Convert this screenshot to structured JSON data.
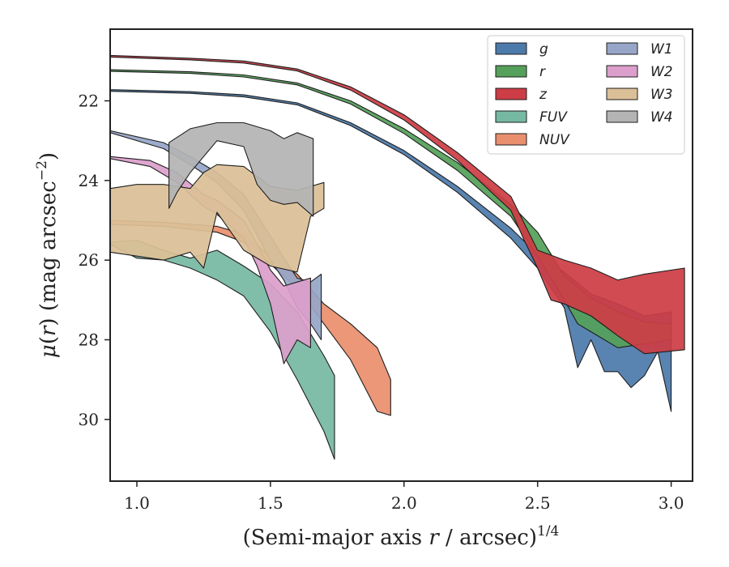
{
  "chart_data": {
    "type": "area",
    "title": "",
    "xlabel": "(Semi-major axis r / arcsec)",
    "xlabel_parts": {
      "prefix": "(Semi-major axis ",
      "var": "r",
      "suffix": " / arcsec)",
      "exponent": "1/4"
    },
    "ylabel_parts": {
      "mu": "μ",
      "open": "(",
      "var": "r",
      "close": ") (mag arcsec",
      "exponent": "−2",
      "end": ")"
    },
    "xlim": [
      0.9,
      3.08
    ],
    "ylim": [
      31.55,
      20.2
    ],
    "y_inverted": true,
    "xticks": [
      1.0,
      1.5,
      2.0,
      2.5,
      3.0
    ],
    "xtick_labels": [
      "1.0",
      "1.5",
      "2.0",
      "2.5",
      "3.0"
    ],
    "yticks": [
      22,
      24,
      26,
      28,
      30
    ],
    "ytick_labels": [
      "22",
      "24",
      "26",
      "28",
      "30"
    ],
    "grid": false,
    "legend_position": "top-right",
    "series": [
      {
        "name": "g",
        "color": "#4c7bab",
        "upper": [
          [
            0.9,
            21.72
          ],
          [
            1.2,
            21.77
          ],
          [
            1.4,
            21.85
          ],
          [
            1.6,
            22.05
          ],
          [
            1.8,
            22.55
          ],
          [
            2.0,
            23.25
          ],
          [
            2.2,
            24.15
          ],
          [
            2.4,
            25.2
          ],
          [
            2.5,
            25.85
          ],
          [
            2.6,
            26.3
          ],
          [
            2.7,
            26.85
          ],
          [
            2.8,
            27.1
          ],
          [
            2.9,
            27.4
          ],
          [
            3.0,
            27.3
          ]
        ],
        "lower": [
          [
            0.9,
            21.76
          ],
          [
            1.2,
            21.81
          ],
          [
            1.4,
            21.9
          ],
          [
            1.6,
            22.1
          ],
          [
            1.8,
            22.62
          ],
          [
            2.0,
            23.35
          ],
          [
            2.2,
            24.3
          ],
          [
            2.4,
            25.45
          ],
          [
            2.5,
            26.2
          ],
          [
            2.6,
            27.2
          ],
          [
            2.65,
            28.7
          ],
          [
            2.7,
            28.0
          ],
          [
            2.75,
            28.8
          ],
          [
            2.8,
            28.8
          ],
          [
            2.85,
            29.2
          ],
          [
            2.9,
            28.9
          ],
          [
            2.95,
            28.3
          ],
          [
            3.0,
            29.8
          ]
        ]
      },
      {
        "name": "r",
        "color": "#55a05a",
        "upper": [
          [
            0.9,
            21.22
          ],
          [
            1.2,
            21.27
          ],
          [
            1.4,
            21.35
          ],
          [
            1.6,
            21.55
          ],
          [
            1.8,
            22.0
          ],
          [
            2.0,
            22.7
          ],
          [
            2.2,
            23.55
          ],
          [
            2.4,
            24.6
          ],
          [
            2.5,
            25.3
          ],
          [
            2.6,
            26.4
          ],
          [
            2.7,
            26.95
          ],
          [
            2.8,
            27.3
          ],
          [
            2.9,
            27.55
          ],
          [
            3.0,
            27.6
          ]
        ],
        "lower": [
          [
            0.9,
            21.26
          ],
          [
            1.2,
            21.31
          ],
          [
            1.4,
            21.4
          ],
          [
            1.6,
            21.6
          ],
          [
            1.8,
            22.08
          ],
          [
            2.0,
            22.82
          ],
          [
            2.2,
            23.75
          ],
          [
            2.4,
            24.9
          ],
          [
            2.5,
            25.9
          ],
          [
            2.6,
            27.0
          ],
          [
            2.65,
            27.6
          ],
          [
            2.7,
            27.8
          ],
          [
            2.8,
            28.2
          ],
          [
            2.9,
            28.1
          ],
          [
            3.0,
            28.0
          ]
        ]
      },
      {
        "name": "z",
        "color": "#cc3d45",
        "upper": [
          [
            0.9,
            20.86
          ],
          [
            1.2,
            20.93
          ],
          [
            1.4,
            21.0
          ],
          [
            1.6,
            21.2
          ],
          [
            1.8,
            21.65
          ],
          [
            2.0,
            22.35
          ],
          [
            2.2,
            23.3
          ],
          [
            2.4,
            24.4
          ],
          [
            2.5,
            25.75
          ],
          [
            2.6,
            26.0
          ],
          [
            2.7,
            26.2
          ],
          [
            2.8,
            26.5
          ],
          [
            2.9,
            26.35
          ],
          [
            3.05,
            26.2
          ]
        ],
        "lower": [
          [
            0.9,
            20.9
          ],
          [
            1.2,
            20.97
          ],
          [
            1.4,
            21.05
          ],
          [
            1.6,
            21.25
          ],
          [
            1.8,
            21.73
          ],
          [
            2.0,
            22.48
          ],
          [
            2.2,
            23.5
          ],
          [
            2.4,
            24.75
          ],
          [
            2.45,
            25.5
          ],
          [
            2.5,
            26.2
          ],
          [
            2.55,
            27.0
          ],
          [
            2.6,
            27.1
          ],
          [
            2.7,
            27.4
          ],
          [
            2.8,
            27.9
          ],
          [
            2.9,
            28.35
          ],
          [
            3.05,
            28.25
          ]
        ]
      },
      {
        "name": "FUV",
        "color": "#76b9a2",
        "upper": [
          [
            0.9,
            25.55
          ],
          [
            1.0,
            25.5
          ],
          [
            1.1,
            25.75
          ],
          [
            1.2,
            25.95
          ],
          [
            1.3,
            25.75
          ],
          [
            1.4,
            26.15
          ],
          [
            1.5,
            26.6
          ],
          [
            1.6,
            27.3
          ],
          [
            1.7,
            28.4
          ],
          [
            1.74,
            28.9
          ]
        ],
        "lower": [
          [
            0.9,
            25.6
          ],
          [
            1.0,
            25.95
          ],
          [
            1.1,
            26.0
          ],
          [
            1.2,
            26.2
          ],
          [
            1.3,
            26.5
          ],
          [
            1.4,
            26.9
          ],
          [
            1.5,
            27.8
          ],
          [
            1.6,
            29.0
          ],
          [
            1.7,
            30.3
          ],
          [
            1.74,
            31.0
          ]
        ]
      },
      {
        "name": "NUV",
        "color": "#e98f6e",
        "upper": [
          [
            0.9,
            25.0
          ],
          [
            1.1,
            25.05
          ],
          [
            1.3,
            25.15
          ],
          [
            1.4,
            25.35
          ],
          [
            1.5,
            25.9
          ],
          [
            1.6,
            26.35
          ],
          [
            1.7,
            27.1
          ],
          [
            1.8,
            27.6
          ],
          [
            1.9,
            28.2
          ],
          [
            1.95,
            29.0
          ]
        ],
        "lower": [
          [
            0.9,
            25.1
          ],
          [
            1.1,
            25.15
          ],
          [
            1.3,
            25.3
          ],
          [
            1.4,
            25.55
          ],
          [
            1.5,
            26.1
          ],
          [
            1.6,
            26.7
          ],
          [
            1.7,
            27.6
          ],
          [
            1.8,
            28.5
          ],
          [
            1.9,
            29.8
          ],
          [
            1.95,
            29.9
          ]
        ]
      },
      {
        "name": "W1",
        "color": "#97a6c8",
        "upper": [
          [
            0.9,
            22.75
          ],
          [
            1.1,
            23.05
          ],
          [
            1.2,
            23.4
          ],
          [
            1.3,
            23.8
          ],
          [
            1.4,
            24.35
          ],
          [
            1.5,
            25.4
          ],
          [
            1.55,
            25.95
          ],
          [
            1.6,
            26.45
          ],
          [
            1.65,
            26.55
          ],
          [
            1.69,
            26.35
          ]
        ],
        "lower": [
          [
            0.9,
            22.8
          ],
          [
            1.1,
            23.2
          ],
          [
            1.2,
            23.6
          ],
          [
            1.3,
            24.05
          ],
          [
            1.4,
            24.75
          ],
          [
            1.5,
            26.0
          ],
          [
            1.55,
            26.5
          ],
          [
            1.6,
            27.2
          ],
          [
            1.65,
            27.6
          ],
          [
            1.69,
            28.0
          ]
        ]
      },
      {
        "name": "W2",
        "color": "#dc9fcb",
        "upper": [
          [
            0.9,
            23.4
          ],
          [
            1.05,
            23.5
          ],
          [
            1.15,
            23.8
          ],
          [
            1.25,
            24.35
          ],
          [
            1.3,
            24.5
          ],
          [
            1.4,
            25.0
          ],
          [
            1.45,
            25.6
          ],
          [
            1.5,
            26.25
          ],
          [
            1.55,
            26.65
          ],
          [
            1.6,
            26.55
          ],
          [
            1.65,
            26.45
          ]
        ],
        "lower": [
          [
            0.9,
            23.45
          ],
          [
            1.05,
            23.65
          ],
          [
            1.15,
            24.05
          ],
          [
            1.25,
            24.65
          ],
          [
            1.3,
            24.85
          ],
          [
            1.4,
            25.45
          ],
          [
            1.45,
            26.15
          ],
          [
            1.5,
            27.1
          ],
          [
            1.55,
            28.6
          ],
          [
            1.6,
            28.0
          ],
          [
            1.65,
            28.2
          ]
        ]
      },
      {
        "name": "W3",
        "color": "#dbbf97",
        "upper": [
          [
            0.9,
            24.2
          ],
          [
            1.0,
            24.1
          ],
          [
            1.1,
            24.1
          ],
          [
            1.2,
            24.2
          ],
          [
            1.25,
            23.8
          ],
          [
            1.3,
            23.6
          ],
          [
            1.4,
            23.65
          ],
          [
            1.5,
            24.15
          ],
          [
            1.6,
            24.25
          ],
          [
            1.7,
            24.05
          ]
        ],
        "lower": [
          [
            0.9,
            25.8
          ],
          [
            1.0,
            25.9
          ],
          [
            1.1,
            26.0
          ],
          [
            1.2,
            25.8
          ],
          [
            1.25,
            26.2
          ],
          [
            1.3,
            24.8
          ],
          [
            1.4,
            25.75
          ],
          [
            1.5,
            26.15
          ],
          [
            1.6,
            26.3
          ],
          [
            1.65,
            24.9
          ],
          [
            1.7,
            24.7
          ]
        ]
      },
      {
        "name": "W4",
        "color": "#b4b4b4",
        "upper": [
          [
            1.12,
            23.05
          ],
          [
            1.2,
            22.7
          ],
          [
            1.3,
            22.55
          ],
          [
            1.4,
            22.55
          ],
          [
            1.5,
            22.75
          ],
          [
            1.55,
            22.95
          ],
          [
            1.6,
            22.8
          ],
          [
            1.66,
            22.95
          ]
        ],
        "lower": [
          [
            1.12,
            24.7
          ],
          [
            1.15,
            24.3
          ],
          [
            1.2,
            23.8
          ],
          [
            1.3,
            23.0
          ],
          [
            1.4,
            23.15
          ],
          [
            1.45,
            24.1
          ],
          [
            1.5,
            24.5
          ],
          [
            1.55,
            24.6
          ],
          [
            1.6,
            24.55
          ],
          [
            1.66,
            24.9
          ]
        ]
      }
    ]
  }
}
